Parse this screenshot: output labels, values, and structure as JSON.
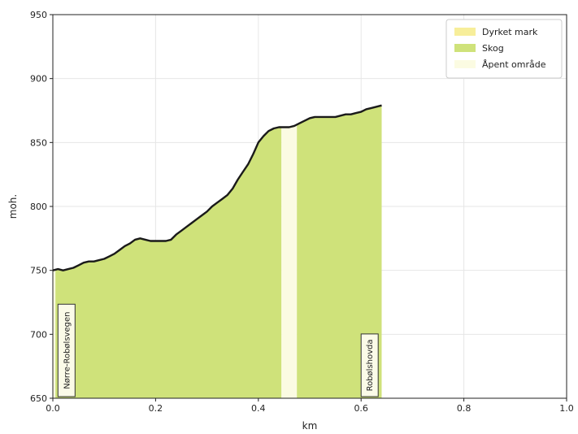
{
  "chart_data": {
    "type": "area",
    "title": "",
    "xlabel": "km",
    "ylabel": "moh.",
    "xlim": [
      0.0,
      1.0
    ],
    "ylim": [
      650,
      950
    ],
    "xticks": [
      "0.0",
      "0.2",
      "0.4",
      "0.6",
      "0.8",
      "1.0"
    ],
    "yticks": [
      "650",
      "700",
      "750",
      "800",
      "850",
      "900",
      "950"
    ],
    "grid": true,
    "legend_position": "top-right",
    "legend": [
      {
        "label": "Dyrket mark",
        "color": "#f7ee9a"
      },
      {
        "label": "Skog",
        "color": "#cfe27a"
      },
      {
        "label": "Åpent område",
        "color": "#fbfbe2"
      }
    ],
    "profile": {
      "x": [
        0.0,
        0.01,
        0.02,
        0.03,
        0.04,
        0.05,
        0.06,
        0.07,
        0.08,
        0.09,
        0.1,
        0.11,
        0.12,
        0.13,
        0.14,
        0.15,
        0.16,
        0.17,
        0.18,
        0.19,
        0.2,
        0.21,
        0.22,
        0.23,
        0.24,
        0.25,
        0.26,
        0.27,
        0.28,
        0.29,
        0.3,
        0.31,
        0.32,
        0.33,
        0.34,
        0.35,
        0.36,
        0.37,
        0.38,
        0.39,
        0.4,
        0.41,
        0.42,
        0.43,
        0.44,
        0.45,
        0.46,
        0.47,
        0.48,
        0.49,
        0.5,
        0.51,
        0.52,
        0.53,
        0.54,
        0.55,
        0.56,
        0.57,
        0.58,
        0.59,
        0.6,
        0.61,
        0.62,
        0.63,
        0.64
      ],
      "y": [
        750,
        751,
        750,
        751,
        752,
        754,
        756,
        757,
        757,
        758,
        759,
        761,
        763,
        766,
        769,
        771,
        774,
        775,
        774,
        773,
        773,
        773,
        773,
        774,
        778,
        781,
        784,
        787,
        790,
        793,
        796,
        800,
        803,
        806,
        809,
        814,
        821,
        827,
        833,
        841,
        850,
        855,
        859,
        861,
        862,
        862,
        862,
        863,
        865,
        867,
        869,
        870,
        870,
        870,
        870,
        870,
        871,
        872,
        872,
        873,
        874,
        876,
        877,
        878,
        879
      ]
    },
    "land_cover": [
      {
        "from": 0.0,
        "to": 0.005,
        "class": "Åpent område"
      },
      {
        "from": 0.005,
        "to": 0.445,
        "class": "Skog"
      },
      {
        "from": 0.445,
        "to": 0.475,
        "class": "Åpent område"
      },
      {
        "from": 0.475,
        "to": 0.64,
        "class": "Skog"
      }
    ],
    "places": [
      {
        "name": "Nørre-Robølsvegen",
        "x": 0.01
      },
      {
        "name": "Robølshovda",
        "x": 0.6
      }
    ]
  }
}
